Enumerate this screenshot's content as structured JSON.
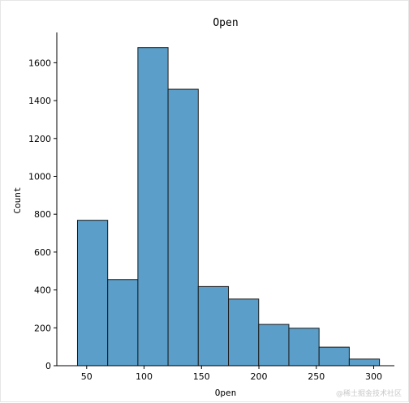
{
  "chart_data": {
    "type": "bar",
    "title": "Open",
    "xlabel": "Open",
    "ylabel": "Count",
    "bin_edges": [
      42,
      68.3,
      94.6,
      120.9,
      147.2,
      173.5,
      199.8,
      226.1,
      252.4,
      278.7,
      305
    ],
    "values": [
      768,
      455,
      1680,
      1460,
      418,
      352,
      218,
      198,
      98,
      35
    ],
    "xlim": [
      24,
      318
    ],
    "ylim": [
      0,
      1760
    ],
    "xticks": [
      50,
      100,
      150,
      200,
      250,
      300
    ],
    "yticks": [
      0,
      200,
      400,
      600,
      800,
      1000,
      1200,
      1400,
      1600
    ],
    "bar_color": "#5a9ec9",
    "edge_color": "#1a1a1a",
    "grid": false,
    "spines": [
      "left",
      "bottom"
    ]
  },
  "watermark": "@稀土掘金技术社区"
}
